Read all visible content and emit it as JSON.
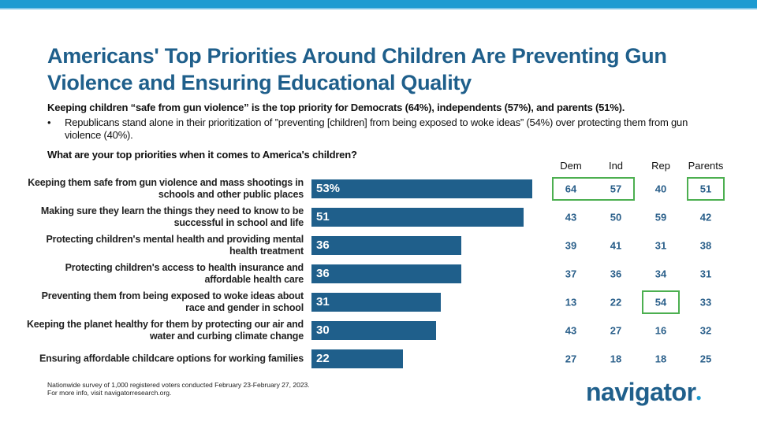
{
  "title": "Americans' Top Priorities Around Children Are Preventing Gun Violence and Ensuring Educational Quality",
  "subtitle": "Keeping children “safe from gun violence” is the top priority for Democrats (64%), independents (57%), and parents (51%).",
  "bullet": "Republicans stand alone in their prioritization of ”preventing [children] from being exposed to woke ideas” (54%) over protecting them from gun violence (40%).",
  "question": "What are your top priorities when it comes to America's children?",
  "footnote": [
    "Nationwide survey of 1,000 registered voters conducted February 23-February 27, 2023.",
    "For more info, visit navigatorresearch.org."
  ],
  "logo": "navigator",
  "colors": {
    "bar": "#1f5f8b",
    "highlight": "#4caf50",
    "topbar": "#1d9bd1"
  },
  "chart_data": {
    "type": "bar",
    "orientation": "horizontal",
    "categories": [
      "Keeping them safe from gun violence and mass shootings in schools and other public places",
      "Making sure they learn the things they need to know to be successful in school and life",
      "Protecting children's mental health and providing mental health treatment",
      "Protecting children's access to health insurance and affordable health care",
      "Preventing them from being exposed to woke ideas about race and gender in school",
      "Keeping the planet healthy for them by protecting our air and water and curbing climate change",
      "Ensuring affordable childcare options for working families"
    ],
    "values": [
      53,
      51,
      36,
      36,
      31,
      30,
      22
    ],
    "value_labels": [
      "53%",
      "51",
      "36",
      "36",
      "31",
      "30",
      "22"
    ],
    "xlim": [
      0,
      100
    ],
    "table": {
      "columns": [
        "Dem",
        "Ind",
        "Rep",
        "Parents"
      ],
      "rows": [
        [
          "64",
          "57",
          "40",
          "51"
        ],
        [
          "43",
          "50",
          "59",
          "42"
        ],
        [
          "39",
          "41",
          "31",
          "38"
        ],
        [
          "37",
          "36",
          "34",
          "31"
        ],
        [
          "13",
          "22",
          "54",
          "33"
        ],
        [
          "43",
          "27",
          "16",
          "32"
        ],
        [
          "27",
          "18",
          "18",
          "25"
        ]
      ],
      "highlighted": [
        [
          0,
          0
        ],
        [
          0,
          1
        ],
        [
          0,
          3
        ],
        [
          4,
          2
        ]
      ]
    }
  }
}
